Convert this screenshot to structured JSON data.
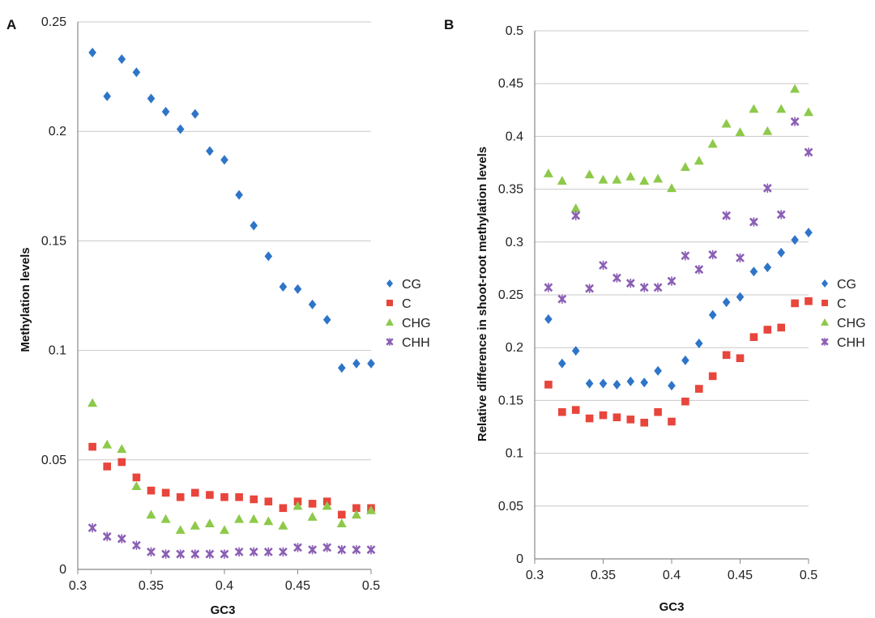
{
  "chart_data": [
    {
      "type": "scatter",
      "panel_label": "A",
      "title": "",
      "xlabel": "GC3",
      "ylabel": "Methylation levels",
      "xlim": [
        0.3,
        0.5
      ],
      "ylim": [
        0,
        0.25
      ],
      "xticks": [
        "0.3",
        "0.35",
        "0.4",
        "0.45",
        "0.5"
      ],
      "yticks": [
        "0",
        "0.05",
        "0.1",
        "0.15",
        "0.2",
        "0.25"
      ],
      "grid": "horizontal",
      "legend": "right",
      "x": [
        0.31,
        0.32,
        0.33,
        0.34,
        0.35,
        0.36,
        0.37,
        0.38,
        0.39,
        0.4,
        0.41,
        0.42,
        0.43,
        0.44,
        0.45,
        0.46,
        0.47,
        0.48,
        0.49,
        0.5
      ],
      "series": [
        {
          "name": "CG",
          "marker": "diamond",
          "color": "#2E75C8",
          "values": [
            0.236,
            0.216,
            0.233,
            0.227,
            0.215,
            0.209,
            0.201,
            0.208,
            0.191,
            0.187,
            0.171,
            0.157,
            0.143,
            0.129,
            0.128,
            0.121,
            0.114,
            0.092,
            0.094,
            0.094
          ]
        },
        {
          "name": "C",
          "marker": "square",
          "color": "#E8453C",
          "values": [
            0.056,
            0.047,
            0.049,
            0.042,
            0.036,
            0.035,
            0.033,
            0.035,
            0.034,
            0.033,
            0.033,
            0.032,
            0.031,
            0.028,
            0.031,
            0.03,
            0.031,
            0.025,
            0.028,
            0.028
          ]
        },
        {
          "name": "CHG",
          "marker": "triangle",
          "color": "#8DC94A",
          "values": [
            0.076,
            0.057,
            0.055,
            0.038,
            0.025,
            0.023,
            0.018,
            0.02,
            0.021,
            0.018,
            0.023,
            0.023,
            0.022,
            0.02,
            0.029,
            0.024,
            0.029,
            0.021,
            0.025,
            0.027
          ]
        },
        {
          "name": "CHH",
          "marker": "x",
          "color": "#8B5FB5",
          "values": [
            0.019,
            0.015,
            0.014,
            0.011,
            0.008,
            0.007,
            0.007,
            0.007,
            0.007,
            0.007,
            0.008,
            0.008,
            0.008,
            0.008,
            0.01,
            0.009,
            0.01,
            0.009,
            0.009,
            0.009
          ]
        }
      ]
    },
    {
      "type": "scatter",
      "panel_label": "B",
      "title": "",
      "xlabel": "GC3",
      "ylabel": "Relative difference in shoot-root methylation levels",
      "xlim": [
        0.3,
        0.5
      ],
      "ylim": [
        0,
        0.5
      ],
      "xticks": [
        "0.3",
        "0.35",
        "0.4",
        "0.45",
        "0.5"
      ],
      "yticks": [
        "0",
        "0.05",
        "0.1",
        "0.15",
        "0.2",
        "0.25",
        "0.3",
        "0.35",
        "0.4",
        "0.45",
        "0.5"
      ],
      "grid": "horizontal",
      "legend": "right",
      "x": [
        0.31,
        0.32,
        0.33,
        0.34,
        0.35,
        0.36,
        0.37,
        0.38,
        0.39,
        0.4,
        0.41,
        0.42,
        0.43,
        0.44,
        0.45,
        0.46,
        0.47,
        0.48,
        0.49,
        0.5
      ],
      "series": [
        {
          "name": "CG",
          "marker": "diamond",
          "color": "#2E75C8",
          "values": [
            0.227,
            0.185,
            0.197,
            0.166,
            0.166,
            0.165,
            0.168,
            0.167,
            0.178,
            0.164,
            0.188,
            0.204,
            0.231,
            0.243,
            0.248,
            0.272,
            0.276,
            0.29,
            0.302,
            0.309
          ]
        },
        {
          "name": "C",
          "marker": "square",
          "color": "#E8453C",
          "values": [
            0.165,
            0.139,
            0.141,
            0.133,
            0.136,
            0.134,
            0.132,
            0.129,
            0.139,
            0.13,
            0.149,
            0.161,
            0.173,
            0.193,
            0.19,
            0.21,
            0.217,
            0.219,
            0.242,
            0.244
          ]
        },
        {
          "name": "CHG",
          "marker": "triangle",
          "color": "#8DC94A",
          "values": [
            0.365,
            0.358,
            0.332,
            0.364,
            0.359,
            0.359,
            0.362,
            0.358,
            0.36,
            0.351,
            0.371,
            0.377,
            0.393,
            0.412,
            0.404,
            0.426,
            0.405,
            0.426,
            0.445,
            0.423
          ]
        },
        {
          "name": "CHH",
          "marker": "x",
          "color": "#8B5FB5",
          "values": [
            0.257,
            0.246,
            0.325,
            0.256,
            0.278,
            0.266,
            0.261,
            0.257,
            0.257,
            0.263,
            0.287,
            0.274,
            0.288,
            0.325,
            0.285,
            0.319,
            0.351,
            0.326,
            0.414,
            0.385
          ]
        }
      ]
    }
  ]
}
